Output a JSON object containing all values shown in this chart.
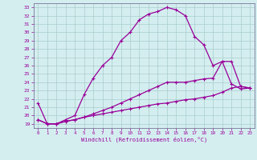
{
  "title": "",
  "xlabel": "Windchill (Refroidissement éolien,°C)",
  "background_color": "#d4eef0",
  "grid_color": "#aacccc",
  "line_color": "#990099",
  "x_ticks": [
    0,
    1,
    2,
    3,
    4,
    5,
    6,
    7,
    8,
    9,
    10,
    11,
    12,
    13,
    14,
    15,
    16,
    17,
    18,
    19,
    20,
    21,
    22,
    23
  ],
  "y_ticks": [
    19,
    20,
    21,
    22,
    23,
    24,
    25,
    26,
    27,
    28,
    29,
    30,
    31,
    32,
    33
  ],
  "xlim": [
    -0.5,
    23.5
  ],
  "ylim": [
    18.5,
    33.5
  ],
  "curve1_x": [
    0,
    1,
    2,
    3,
    4,
    5,
    6,
    7,
    8,
    9,
    10,
    11,
    12,
    13,
    14,
    15,
    16,
    17,
    18,
    19,
    20,
    21,
    22,
    23
  ],
  "curve1_y": [
    21.5,
    19.0,
    19.0,
    19.5,
    20.0,
    22.5,
    24.5,
    26.0,
    27.0,
    29.0,
    30.0,
    31.5,
    32.2,
    32.5,
    33.0,
    32.7,
    32.0,
    29.5,
    28.5,
    26.0,
    26.5,
    23.8,
    23.2,
    23.3
  ],
  "curve2_x": [
    0,
    1,
    2,
    3,
    4,
    5,
    6,
    7,
    8,
    9,
    10,
    11,
    12,
    13,
    14,
    15,
    16,
    17,
    18,
    19,
    20,
    21,
    22,
    23
  ],
  "curve2_y": [
    19.5,
    19.0,
    19.0,
    19.3,
    19.5,
    19.8,
    20.0,
    20.2,
    20.4,
    20.6,
    20.8,
    21.0,
    21.2,
    21.4,
    21.5,
    21.7,
    21.9,
    22.0,
    22.2,
    22.4,
    22.8,
    23.3,
    23.5,
    23.3
  ],
  "curve3_x": [
    0,
    1,
    2,
    3,
    4,
    5,
    6,
    7,
    8,
    9,
    10,
    11,
    12,
    13,
    14,
    15,
    16,
    17,
    18,
    19,
    20,
    21,
    22,
    23
  ],
  "curve3_y": [
    19.5,
    19.0,
    19.0,
    19.3,
    19.5,
    19.8,
    20.2,
    20.6,
    21.0,
    21.5,
    22.0,
    22.5,
    23.0,
    23.5,
    24.0,
    24.0,
    24.0,
    24.2,
    24.4,
    24.5,
    26.5,
    26.5,
    23.5,
    23.3
  ]
}
